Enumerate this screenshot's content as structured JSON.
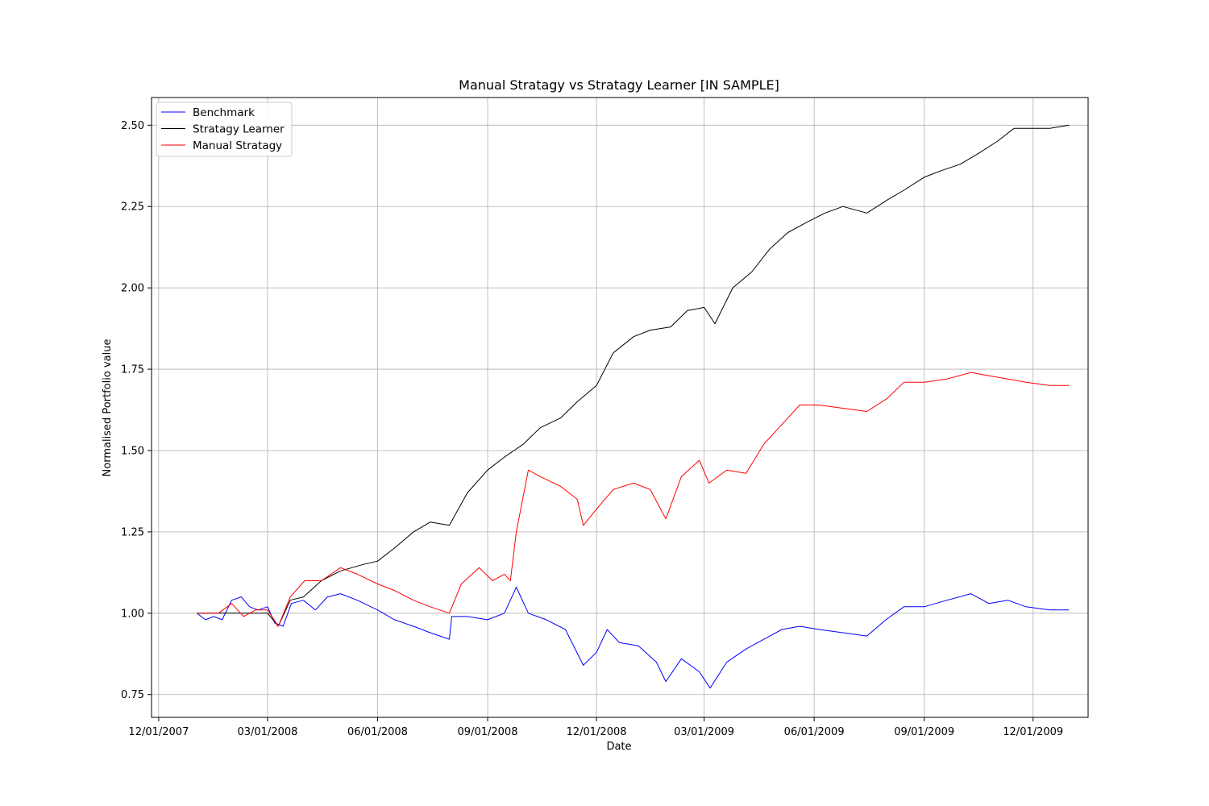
{
  "chart_data": {
    "type": "line",
    "title": "Manual Stratagy vs Stratagy Learner [IN SAMPLE]",
    "xlabel": "Date",
    "ylabel": "Normalised Portfolio value",
    "x_range": [
      "2007-11-25",
      "2010-01-16"
    ],
    "ylim": [
      0.68,
      2.585
    ],
    "x_ticks": [
      {
        "date": "2007-12-01",
        "label": "12/01/2007"
      },
      {
        "date": "2008-03-01",
        "label": "03/01/2008"
      },
      {
        "date": "2008-06-01",
        "label": "06/01/2008"
      },
      {
        "date": "2008-09-01",
        "label": "09/01/2008"
      },
      {
        "date": "2008-12-01",
        "label": "12/01/2008"
      },
      {
        "date": "2009-03-01",
        "label": "03/01/2009"
      },
      {
        "date": "2009-06-01",
        "label": "06/01/2009"
      },
      {
        "date": "2009-09-01",
        "label": "09/01/2009"
      },
      {
        "date": "2009-12-01",
        "label": "12/01/2009"
      }
    ],
    "y_ticks": [
      {
        "value": 0.75,
        "label": "0.75"
      },
      {
        "value": 1.0,
        "label": "1.00"
      },
      {
        "value": 1.25,
        "label": "1.25"
      },
      {
        "value": 1.5,
        "label": "1.50"
      },
      {
        "value": 1.75,
        "label": "1.75"
      },
      {
        "value": 2.0,
        "label": "2.00"
      },
      {
        "value": 2.25,
        "label": "2.25"
      },
      {
        "value": 2.5,
        "label": "2.50"
      }
    ],
    "grid": true,
    "legend_position": "top-left",
    "series": [
      {
        "name": "Benchmark",
        "color": "#0000ff",
        "points": [
          [
            "2008-01-02",
            1.0
          ],
          [
            "2008-01-09",
            0.98
          ],
          [
            "2008-01-16",
            0.99
          ],
          [
            "2008-01-23",
            0.98
          ],
          [
            "2008-01-31",
            1.04
          ],
          [
            "2008-02-08",
            1.05
          ],
          [
            "2008-02-15",
            1.02
          ],
          [
            "2008-02-22",
            1.01
          ],
          [
            "2008-03-01",
            1.02
          ],
          [
            "2008-03-07",
            0.97
          ],
          [
            "2008-03-14",
            0.96
          ],
          [
            "2008-03-21",
            1.03
          ],
          [
            "2008-03-31",
            1.04
          ],
          [
            "2008-04-10",
            1.01
          ],
          [
            "2008-04-20",
            1.05
          ],
          [
            "2008-05-01",
            1.06
          ],
          [
            "2008-05-15",
            1.04
          ],
          [
            "2008-06-01",
            1.01
          ],
          [
            "2008-06-15",
            0.98
          ],
          [
            "2008-07-01",
            0.96
          ],
          [
            "2008-07-15",
            0.94
          ],
          [
            "2008-07-31",
            0.92
          ],
          [
            "2008-08-02",
            0.99
          ],
          [
            "2008-08-15",
            0.99
          ],
          [
            "2008-09-01",
            0.98
          ],
          [
            "2008-09-15",
            1.0
          ],
          [
            "2008-09-25",
            1.08
          ],
          [
            "2008-10-05",
            1.0
          ],
          [
            "2008-10-20",
            0.98
          ],
          [
            "2008-11-05",
            0.95
          ],
          [
            "2008-11-20",
            0.84
          ],
          [
            "2008-12-01",
            0.88
          ],
          [
            "2008-12-10",
            0.95
          ],
          [
            "2008-12-20",
            0.91
          ],
          [
            "2009-01-05",
            0.9
          ],
          [
            "2009-01-20",
            0.85
          ],
          [
            "2009-01-28",
            0.79
          ],
          [
            "2009-02-10",
            0.86
          ],
          [
            "2009-02-25",
            0.82
          ],
          [
            "2009-03-06",
            0.77
          ],
          [
            "2009-03-20",
            0.85
          ],
          [
            "2009-04-05",
            0.89
          ],
          [
            "2009-04-20",
            0.92
          ],
          [
            "2009-05-05",
            0.95
          ],
          [
            "2009-05-20",
            0.96
          ],
          [
            "2009-06-05",
            0.95
          ],
          [
            "2009-06-25",
            0.94
          ],
          [
            "2009-07-15",
            0.93
          ],
          [
            "2009-07-31",
            0.98
          ],
          [
            "2009-08-15",
            1.02
          ],
          [
            "2009-09-01",
            1.02
          ],
          [
            "2009-09-20",
            1.04
          ],
          [
            "2009-10-10",
            1.06
          ],
          [
            "2009-10-25",
            1.03
          ],
          [
            "2009-11-10",
            1.04
          ],
          [
            "2009-11-25",
            1.02
          ],
          [
            "2009-12-15",
            1.01
          ],
          [
            "2009-12-31",
            1.01
          ]
        ]
      },
      {
        "name": "Stratagy Learner",
        "color": "#000000",
        "points": [
          [
            "2008-01-02",
            1.0
          ],
          [
            "2008-01-15",
            1.0
          ],
          [
            "2008-02-01",
            1.0
          ],
          [
            "2008-02-15",
            1.0
          ],
          [
            "2008-03-01",
            1.0
          ],
          [
            "2008-03-10",
            0.96
          ],
          [
            "2008-03-20",
            1.04
          ],
          [
            "2008-03-31",
            1.05
          ],
          [
            "2008-04-15",
            1.1
          ],
          [
            "2008-05-01",
            1.13
          ],
          [
            "2008-05-20",
            1.15
          ],
          [
            "2008-06-01",
            1.16
          ],
          [
            "2008-06-15",
            1.2
          ],
          [
            "2008-07-01",
            1.25
          ],
          [
            "2008-07-15",
            1.28
          ],
          [
            "2008-07-31",
            1.27
          ],
          [
            "2008-08-15",
            1.37
          ],
          [
            "2008-09-01",
            1.44
          ],
          [
            "2008-09-15",
            1.48
          ],
          [
            "2008-10-01",
            1.52
          ],
          [
            "2008-10-15",
            1.57
          ],
          [
            "2008-11-01",
            1.6
          ],
          [
            "2008-11-15",
            1.65
          ],
          [
            "2008-12-01",
            1.7
          ],
          [
            "2008-12-15",
            1.8
          ],
          [
            "2009-01-01",
            1.85
          ],
          [
            "2009-01-15",
            1.87
          ],
          [
            "2009-02-01",
            1.88
          ],
          [
            "2009-02-15",
            1.93
          ],
          [
            "2009-03-01",
            1.94
          ],
          [
            "2009-03-10",
            1.89
          ],
          [
            "2009-03-25",
            2.0
          ],
          [
            "2009-04-10",
            2.05
          ],
          [
            "2009-04-25",
            2.12
          ],
          [
            "2009-05-10",
            2.17
          ],
          [
            "2009-05-25",
            2.2
          ],
          [
            "2009-06-10",
            2.23
          ],
          [
            "2009-06-25",
            2.25
          ],
          [
            "2009-07-15",
            2.23
          ],
          [
            "2009-08-01",
            2.27
          ],
          [
            "2009-08-15",
            2.3
          ],
          [
            "2009-09-01",
            2.34
          ],
          [
            "2009-09-15",
            2.36
          ],
          [
            "2009-10-01",
            2.38
          ],
          [
            "2009-10-15",
            2.41
          ],
          [
            "2009-11-01",
            2.45
          ],
          [
            "2009-11-15",
            2.49
          ],
          [
            "2009-12-01",
            2.49
          ],
          [
            "2009-12-15",
            2.49
          ],
          [
            "2009-12-31",
            2.5
          ]
        ]
      },
      {
        "name": "Manual Stratagy",
        "color": "#ff0000",
        "points": [
          [
            "2008-01-02",
            1.0
          ],
          [
            "2008-01-20",
            1.0
          ],
          [
            "2008-01-31",
            1.03
          ],
          [
            "2008-02-10",
            0.99
          ],
          [
            "2008-02-20",
            1.01
          ],
          [
            "2008-03-01",
            1.01
          ],
          [
            "2008-03-10",
            0.96
          ],
          [
            "2008-03-20",
            1.05
          ],
          [
            "2008-04-01",
            1.1
          ],
          [
            "2008-04-15",
            1.1
          ],
          [
            "2008-05-01",
            1.14
          ],
          [
            "2008-05-15",
            1.12
          ],
          [
            "2008-06-01",
            1.09
          ],
          [
            "2008-06-15",
            1.07
          ],
          [
            "2008-07-01",
            1.04
          ],
          [
            "2008-07-15",
            1.02
          ],
          [
            "2008-07-31",
            1.0
          ],
          [
            "2008-08-10",
            1.09
          ],
          [
            "2008-08-25",
            1.14
          ],
          [
            "2008-09-05",
            1.1
          ],
          [
            "2008-09-15",
            1.12
          ],
          [
            "2008-09-20",
            1.1
          ],
          [
            "2008-09-25",
            1.25
          ],
          [
            "2008-10-05",
            1.44
          ],
          [
            "2008-10-15",
            1.42
          ],
          [
            "2008-11-01",
            1.39
          ],
          [
            "2008-11-15",
            1.35
          ],
          [
            "2008-11-20",
            1.27
          ],
          [
            "2008-12-01",
            1.32
          ],
          [
            "2008-12-15",
            1.38
          ],
          [
            "2009-01-01",
            1.4
          ],
          [
            "2009-01-15",
            1.38
          ],
          [
            "2009-01-28",
            1.29
          ],
          [
            "2009-02-10",
            1.42
          ],
          [
            "2009-02-25",
            1.47
          ],
          [
            "2009-03-05",
            1.4
          ],
          [
            "2009-03-20",
            1.44
          ],
          [
            "2009-04-05",
            1.43
          ],
          [
            "2009-04-20",
            1.52
          ],
          [
            "2009-05-05",
            1.58
          ],
          [
            "2009-05-20",
            1.64
          ],
          [
            "2009-06-05",
            1.64
          ],
          [
            "2009-06-25",
            1.63
          ],
          [
            "2009-07-15",
            1.62
          ],
          [
            "2009-08-01",
            1.66
          ],
          [
            "2009-08-15",
            1.71
          ],
          [
            "2009-09-01",
            1.71
          ],
          [
            "2009-09-20",
            1.72
          ],
          [
            "2009-10-10",
            1.74
          ],
          [
            "2009-10-25",
            1.73
          ],
          [
            "2009-11-10",
            1.72
          ],
          [
            "2009-11-25",
            1.71
          ],
          [
            "2009-12-15",
            1.7
          ],
          [
            "2009-12-31",
            1.7
          ]
        ]
      }
    ]
  }
}
